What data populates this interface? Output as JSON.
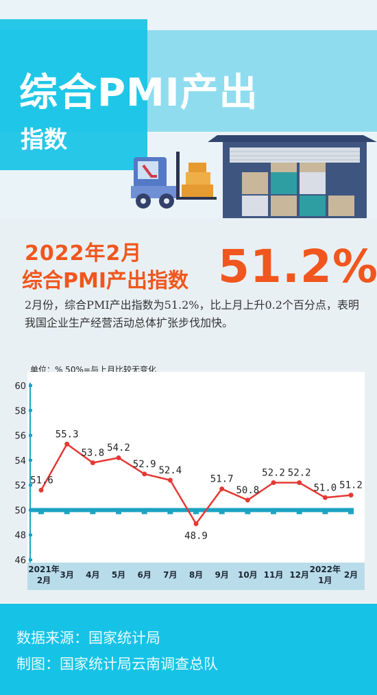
{
  "header": {
    "title_main": "综合PMI产出",
    "title_sub": "指数"
  },
  "headline": {
    "date": "2022年2月",
    "label": "综合PMI产出指数",
    "value": "51.2%"
  },
  "description": "2月份，综合PMI产出指数为51.2%，比上月上升0.2个百分点，表明我国企业生产经营活动总体扩张步伐加快。",
  "chart_data": {
    "type": "line",
    "unit_note": "单位：%  50%=与上月比较无变化",
    "categories": [
      [
        "2021年",
        "2月"
      ],
      [
        "3月"
      ],
      [
        "4月"
      ],
      [
        "5月"
      ],
      [
        "6月"
      ],
      [
        "7月"
      ],
      [
        "8月"
      ],
      [
        "9月"
      ],
      [
        "10月"
      ],
      [
        "11月"
      ],
      [
        "12月"
      ],
      [
        "2022年",
        "1月"
      ],
      [
        "2月"
      ]
    ],
    "values": [
      51.6,
      55.3,
      53.8,
      54.2,
      52.9,
      52.4,
      48.9,
      51.7,
      50.8,
      52.2,
      52.2,
      51.0,
      51.2
    ],
    "value_labels": [
      "51.6",
      "55.3",
      "53.8",
      "54.2",
      "52.9",
      "52.4",
      "48.9",
      "51.7",
      "50.8",
      "52.2",
      "52.2",
      "51.0",
      "51.2"
    ],
    "yticks": [
      "46",
      "48",
      "50",
      "52",
      "54",
      "56",
      "58",
      "60"
    ],
    "ylim": [
      46,
      60
    ],
    "reference_line": 50,
    "colors": {
      "line": "#e53935",
      "reference": "#1aa3c1",
      "axis": "#1aa3c1",
      "category_band": "#b9dcea"
    }
  },
  "footer": {
    "source": "数据来源：国家统计局",
    "maker": "制图：国家统计局云南调查总队"
  }
}
